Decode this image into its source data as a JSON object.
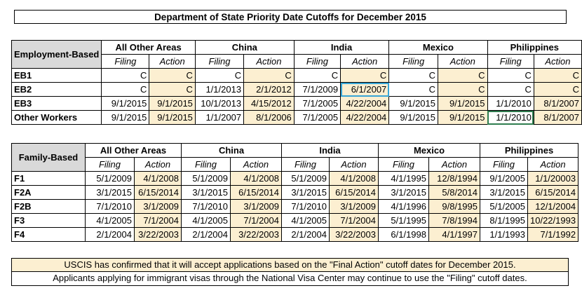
{
  "title": "Department of State Priority Date Cutoffs for December 2015",
  "employment": {
    "header_label": "Employment-Based",
    "groups": [
      "All Other Areas",
      "China",
      "India",
      "Mexico",
      "Philippines"
    ],
    "sub_filing": "Filing",
    "sub_action": "Action",
    "rows": [
      {
        "label": "EB1",
        "cells": [
          "C",
          "C",
          "C",
          "C",
          "C",
          "C",
          "C",
          "C",
          "C",
          "C"
        ]
      },
      {
        "label": "EB2",
        "cells": [
          "C",
          "C",
          "1/1/2013",
          "2/1/2012",
          "7/1/2009",
          "6/1/2007",
          "C",
          "C",
          "C",
          "C"
        ]
      },
      {
        "label": "EB3",
        "cells": [
          "9/1/2015",
          "9/1/2015",
          "10/1/2013",
          "4/15/2012",
          "7/1/2005",
          "4/22/2004",
          "9/1/2015",
          "9/1/2015",
          "1/1/2010",
          "8/1/2007"
        ]
      },
      {
        "label": "Other Workers",
        "cells": [
          "9/1/2015",
          "9/1/2015",
          "1/1/2007",
          "8/1/2006",
          "7/1/2005",
          "4/22/2004",
          "9/1/2015",
          "9/1/2015",
          "1/1/2010",
          "8/1/2007"
        ]
      }
    ]
  },
  "family": {
    "header_label": "Family-Based",
    "groups": [
      "All Other Areas",
      "China",
      "India",
      "Mexico",
      "Philippines"
    ],
    "sub_filing": "Filing",
    "sub_action": "Action",
    "rows": [
      {
        "label": "F1",
        "cells": [
          "5/1/2009",
          "4/1/2008",
          "5/1/2009",
          "4/1/2008",
          "5/1/2009",
          "4/1/2008",
          "4/1/1995",
          "12/8/1994",
          "9/1/2005",
          "1/1/20003"
        ]
      },
      {
        "label": "F2A",
        "cells": [
          "3/1/2015",
          "6/15/2014",
          "3/1/2015",
          "6/15/2014",
          "3/1/2015",
          "6/15/2014",
          "3/1/2015",
          "5/8/2014",
          "3/1/2015",
          "6/15/2014"
        ]
      },
      {
        "label": "F2B",
        "cells": [
          "7/1/2010",
          "3/1/2009",
          "7/1/2010",
          "3/1/2009",
          "7/1/2010",
          "3/1/2009",
          "4/1/1996",
          "9/8/1995",
          "5/1/2005",
          "12/1/2004"
        ]
      },
      {
        "label": "F3",
        "cells": [
          "4/1/2005",
          "7/1/2004",
          "4/1/2005",
          "7/1/2004",
          "4/1/2005",
          "7/1/2004",
          "5/1/1995",
          "7/8/1994",
          "8/1/1995",
          "10/22/1993"
        ]
      },
      {
        "label": "F4",
        "cells": [
          "2/1/2004",
          "3/22/2003",
          "2/1/2004",
          "3/22/2003",
          "2/1/2004",
          "3/22/2003",
          "6/1/1998",
          "4/1/1997",
          "1/1/1993",
          "7/1/1992"
        ]
      }
    ]
  },
  "notes": {
    "line1": "USCIS has confirmed that it will accept applications based on the \"Final Action\" cutoff dates for December 2015.",
    "line2": "Applicants applying for immigrant visas through the National Visa Center may continue to use the \"Filing\" cutoff dates."
  },
  "colors": {
    "action_fill": "#fcefd1",
    "header_fill": "#d9d9d9",
    "selected_blue": "#37a5d6",
    "selected_green": "#2f7d4f"
  }
}
